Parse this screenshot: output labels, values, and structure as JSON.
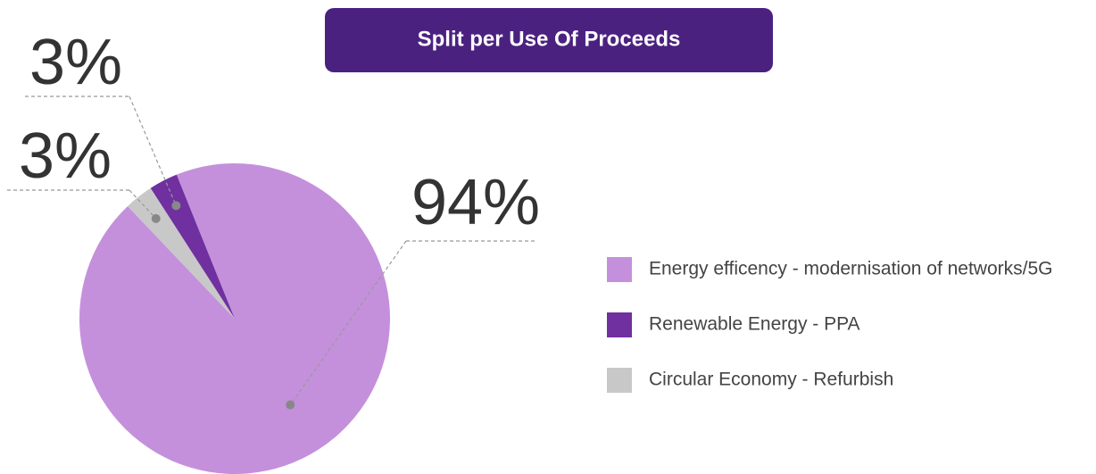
{
  "chart_data": {
    "type": "pie",
    "title": "Split per Use Of Proceeds",
    "categories": [
      "Energy efficency - modernisation of networks/5G",
      "Renewable Energy - PPA",
      "Circular Economy - Refurbish"
    ],
    "values": [
      94,
      3,
      3
    ],
    "value_labels": [
      "94%",
      "3%",
      "3%"
    ],
    "colors": [
      "#c490dc",
      "#7030a0",
      "#c8c8c8"
    ],
    "legend": "right"
  }
}
